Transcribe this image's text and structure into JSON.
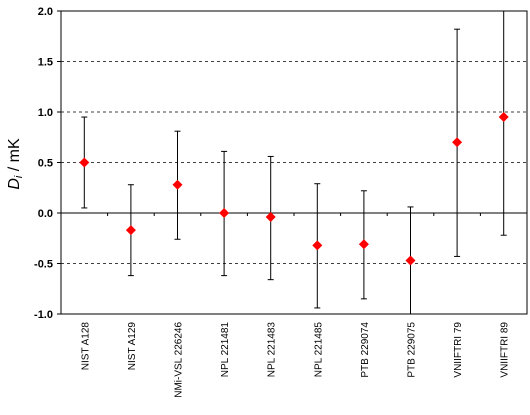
{
  "chart_data": {
    "type": "scatter",
    "ylabel": {
      "symbol": "D",
      "subscript": "i",
      "unit": " / mK"
    },
    "ylim": [
      -1.0,
      2.0
    ],
    "yticks": [
      "2.0",
      "1.5",
      "1.0",
      "0.5",
      "0.0",
      "-0.5",
      "-1.0"
    ],
    "grid": "dashed horizontal lines",
    "marker_color": "#ff0000",
    "error_bar_color": "#000000",
    "categories": [
      "NIST A128",
      "NIST A129",
      "NMi-VSL 226246",
      "NPL 221481",
      "NPL 221483",
      "NPL 221485",
      "PTB 229074",
      "PTB 229075",
      "VNIIFTRI 79",
      "VNIIFTRI 89"
    ],
    "values": [
      0.5,
      -0.17,
      0.28,
      0.0,
      -0.04,
      -0.32,
      -0.31,
      -0.47,
      0.7,
      0.95
    ],
    "error_low": [
      0.05,
      -0.62,
      -0.26,
      -0.62,
      -0.66,
      -0.94,
      -0.85,
      -1.0,
      -0.43,
      -0.22
    ],
    "error_high": [
      0.95,
      0.28,
      0.81,
      0.61,
      0.56,
      0.29,
      0.22,
      0.06,
      1.82,
      2.05
    ]
  }
}
